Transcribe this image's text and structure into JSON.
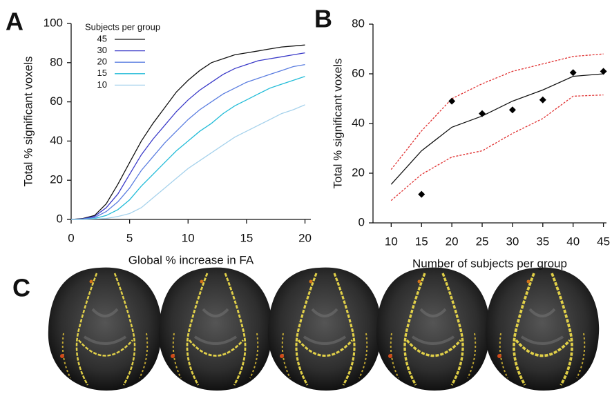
{
  "chart_data": [
    {
      "type": "line",
      "panel": "A",
      "xlabel": "Global % increase in FA",
      "ylabel": "Total % significant voxels",
      "x": [
        0,
        1,
        2,
        3,
        4,
        5,
        6,
        7,
        8,
        9,
        10,
        11,
        12,
        13,
        14,
        15,
        16,
        17,
        18,
        19,
        20
      ],
      "xlim": [
        0,
        20.5
      ],
      "xticks": [
        0,
        5,
        10,
        15,
        20
      ],
      "ylim": [
        0,
        100
      ],
      "yticks": [
        0,
        20,
        40,
        60,
        80,
        100
      ],
      "legend": "upper left",
      "legend_title": "Subjects per group",
      "series": [
        {
          "name": "45",
          "color": "#111111",
          "style": "solid",
          "values": [
            0,
            0.5,
            2,
            8,
            18,
            29,
            40,
            49,
            57,
            65,
            71,
            76,
            80,
            82,
            84,
            85,
            86,
            87,
            88,
            88.5,
            89
          ]
        },
        {
          "name": "30",
          "color": "#3a3ac8",
          "style": "solid",
          "values": [
            0,
            0.3,
            1.5,
            6,
            13,
            23,
            33,
            41,
            48,
            55,
            61,
            66,
            70,
            74,
            77,
            79,
            81,
            82,
            83,
            84,
            85
          ]
        },
        {
          "name": "20",
          "color": "#5a7de0",
          "style": "solid",
          "values": [
            0,
            0.2,
            1,
            4,
            9,
            16,
            25,
            32,
            39,
            45,
            51,
            56,
            60,
            64,
            67,
            70,
            72,
            74,
            76,
            78,
            79
          ]
        },
        {
          "name": "15",
          "color": "#22bcd8",
          "style": "solid",
          "values": [
            0,
            0,
            0.5,
            2,
            5,
            10,
            17,
            23,
            29,
            35,
            40,
            45,
            49,
            54,
            58,
            61,
            64,
            67,
            69,
            71,
            73
          ]
        },
        {
          "name": "10",
          "color": "#a6d2ec",
          "style": "solid",
          "values": [
            0,
            0,
            0.2,
            0.5,
            1.5,
            3,
            6,
            11,
            16,
            21,
            26,
            30,
            34,
            38,
            42,
            45,
            48,
            51,
            54,
            56,
            58.5
          ]
        }
      ]
    },
    {
      "type": "line",
      "panel": "B",
      "xlabel": "Number of subjects per group",
      "ylabel": "Total % significant voxels",
      "xlim": [
        7,
        45.5
      ],
      "xticks": [
        10,
        15,
        20,
        25,
        30,
        35,
        40,
        45
      ],
      "ylim": [
        0,
        80
      ],
      "yticks": [
        0,
        20,
        40,
        60,
        80
      ],
      "series": [
        {
          "color": "#111111",
          "style": "solid",
          "x": [
            10,
            15,
            20,
            25,
            30,
            35,
            40,
            45
          ],
          "values": [
            15.5,
            29,
            38.5,
            43,
            49,
            53.5,
            59,
            60
          ]
        },
        {
          "color": "#e03030",
          "style": "dashed",
          "x": [
            10,
            15,
            20,
            25,
            30,
            35,
            40,
            45
          ],
          "values": [
            21.5,
            37,
            50,
            56,
            61,
            64,
            67,
            68
          ]
        },
        {
          "color": "#e03030",
          "style": "dashed",
          "x": [
            10,
            15,
            20,
            25,
            30,
            35,
            40,
            45
          ],
          "values": [
            9,
            19.5,
            26.5,
            29,
            36,
            42,
            51,
            51.5
          ]
        },
        {
          "color": "#000000",
          "style": "markers",
          "x": [
            15,
            20,
            25,
            30,
            35,
            40,
            45
          ],
          "values": [
            11.5,
            49,
            44,
            45.5,
            49.5,
            60.5,
            61
          ]
        }
      ]
    }
  ],
  "panel_c": {
    "label": "C"
  }
}
